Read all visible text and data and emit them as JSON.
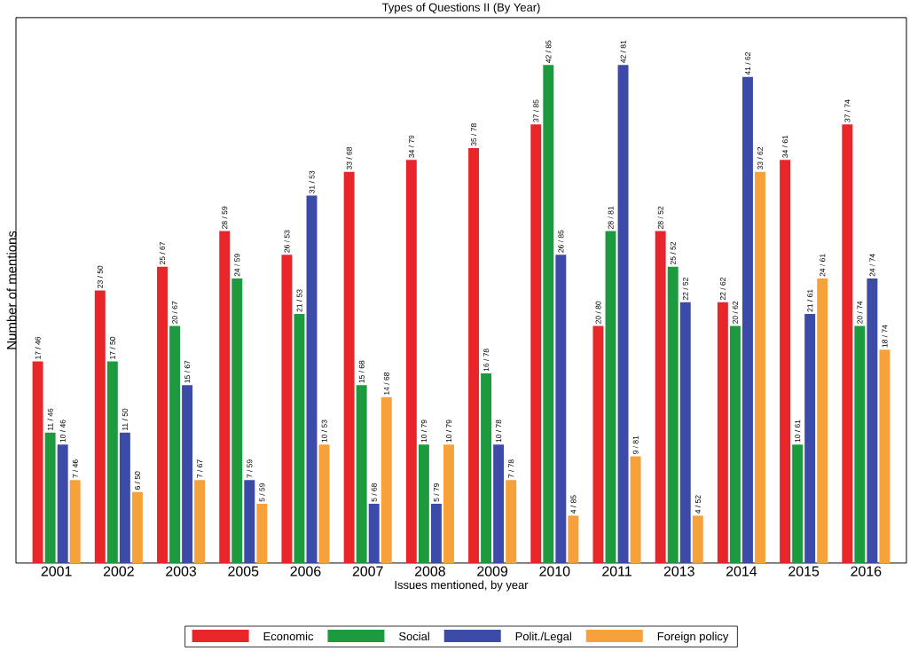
{
  "chart_data": {
    "type": "bar",
    "title": "Types of Questions II (By Year)",
    "xlabel": "Issues mentioned, by year",
    "ylabel": "Number of mentions",
    "categories": [
      "2001",
      "2002",
      "2003",
      "2005",
      "2006",
      "2007",
      "2008",
      "2009",
      "2010",
      "2011",
      "2013",
      "2014",
      "2015",
      "2016"
    ],
    "series": [
      {
        "name": "Economic",
        "color": "#e8262a",
        "values": [
          17,
          23,
          25,
          28,
          26,
          33,
          34,
          35,
          37,
          20,
          28,
          22,
          34,
          37
        ],
        "value_labels": [
          "17 / 46",
          "23 / 50",
          "25 / 67",
          "28 / 59",
          "26 / 53",
          "33 / 68",
          "34 / 79",
          "35 / 78",
          "37 / 85",
          "20 / 80",
          "28 / 52",
          "22 / 62",
          "34 / 61",
          "37 / 74"
        ]
      },
      {
        "name": "Social",
        "color": "#1e9a3e",
        "values": [
          11,
          17,
          20,
          24,
          21,
          15,
          10,
          16,
          42,
          28,
          25,
          20,
          10,
          20
        ],
        "value_labels": [
          "11 / 46",
          "17 / 50",
          "20 / 67",
          "24 / 59",
          "21 / 53",
          "15 / 68",
          "10 / 79",
          "16 / 78",
          "42 / 85",
          "28 / 81",
          "25 / 52",
          "20 / 62",
          "10 / 61",
          "20 / 74"
        ]
      },
      {
        "name": "Polit./Legal",
        "color": "#3c4aa8",
        "values": [
          10,
          11,
          15,
          7,
          31,
          5,
          5,
          10,
          26,
          42,
          22,
          41,
          21,
          24
        ],
        "value_labels": [
          "10 / 46",
          "11 / 50",
          "15 / 67",
          "7 / 59",
          "31 / 53",
          "5 / 68",
          "5 / 79",
          "10 / 78",
          "26 / 85",
          "42 / 81",
          "22 / 52",
          "41 / 62",
          "21 / 61",
          "24 / 74"
        ]
      },
      {
        "name": "Foreign policy",
        "color": "#f7a13a",
        "values": [
          7,
          6,
          7,
          5,
          10,
          14,
          10,
          7,
          4,
          9,
          4,
          33,
          24,
          18
        ],
        "value_labels": [
          "7 / 46",
          "6 / 50",
          "7 / 67",
          "5 / 59",
          "10 / 53",
          "14 / 68",
          "10 / 79",
          "7 / 78",
          "4 / 85",
          "9 / 81",
          "4 / 52",
          "33 / 62",
          "24 / 61",
          "18 / 74"
        ]
      }
    ],
    "ylim": [
      0,
      46
    ],
    "tick_labels": "x",
    "legend": "bottom",
    "grid": false
  }
}
